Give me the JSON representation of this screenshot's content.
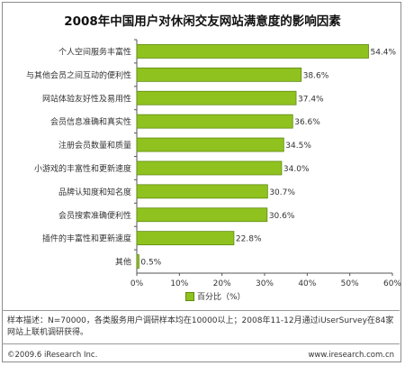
{
  "chart_data": {
    "type": "bar",
    "orientation": "horizontal",
    "title": "2008年中国用户对休闲交友网站满意度的影响因素",
    "categories": [
      "个人空间服务丰富性",
      "与其他会员之间互动的便利性",
      "网站体验友好性及易用性",
      "会员信息准确和真实性",
      "注册会员数量和质量",
      "小游戏的丰富性和更新速度",
      "品牌认知度和知名度",
      "会员搜索准确便利性",
      "插件的丰富性和更新速度",
      "其他"
    ],
    "values": [
      54.4,
      38.6,
      37.4,
      36.6,
      34.5,
      34.0,
      30.7,
      30.6,
      22.8,
      0.5
    ],
    "value_labels": [
      "54.4%",
      "38.6%",
      "37.4%",
      "36.6%",
      "34.5%",
      "34.0%",
      "30.7%",
      "30.6%",
      "22.8%",
      "0.5%"
    ],
    "xlim": [
      0,
      60
    ],
    "x_ticks": [
      "0%",
      "10%",
      "20%",
      "30%",
      "40%",
      "50%",
      "60%"
    ],
    "series": [
      {
        "name": "百分比（%）",
        "values": [
          54.4,
          38.6,
          37.4,
          36.6,
          34.5,
          34.0,
          30.7,
          30.6,
          22.8,
          0.5
        ]
      }
    ],
    "legend": "bottom",
    "bar_color": "#8fc21f",
    "bar_border_color": "#5f8a10"
  },
  "note": "样本描述：N=70000，各类服务用户调研样本均在10000以上；2008年11-12月通过iUserSurvey在84家网站上联机调研获得。",
  "footer": {
    "copyright": "©2009.6 iResearch Inc.",
    "website": "www.iresearch.com.cn"
  }
}
